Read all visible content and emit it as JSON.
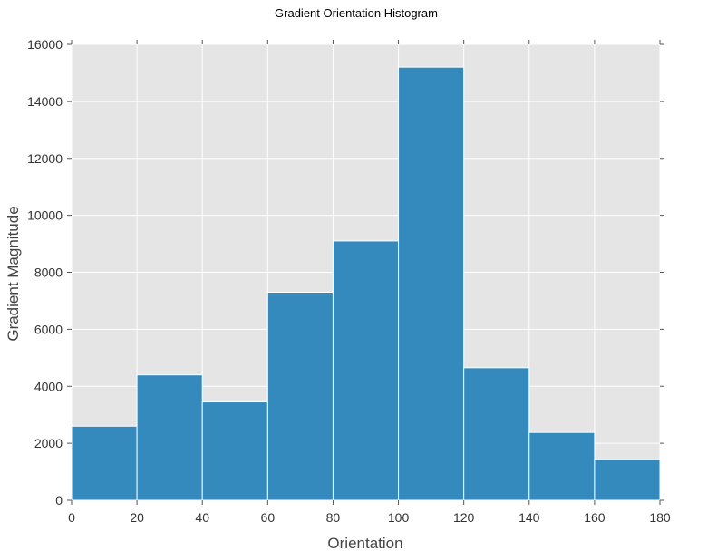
{
  "chart_data": {
    "type": "bar",
    "title": "Gradient Orientation Histogram",
    "xlabel": "Orientation",
    "ylabel": "Gradient Magnitude",
    "bin_edges": [
      0,
      20,
      40,
      60,
      80,
      100,
      120,
      140,
      160,
      180
    ],
    "values": [
      2600,
      4400,
      3450,
      7300,
      9100,
      15200,
      4650,
      2380,
      1420
    ],
    "xlim": [
      0,
      180
    ],
    "ylim": [
      0,
      16000
    ],
    "xticks": [
      0,
      20,
      40,
      60,
      80,
      100,
      120,
      140,
      160,
      180
    ],
    "yticks": [
      0,
      2000,
      4000,
      6000,
      8000,
      10000,
      12000,
      14000,
      16000
    ],
    "xtick_labels": [
      "0",
      "20",
      "40",
      "60",
      "80",
      "100",
      "120",
      "140",
      "160",
      "180"
    ],
    "ytick_labels": [
      "0",
      "2000",
      "4000",
      "6000",
      "8000",
      "10000",
      "12000",
      "14000",
      "16000"
    ],
    "grid": true,
    "colors": {
      "bar": "#348abd",
      "bar_edge": "#ffffff",
      "background": "#e5e5e5",
      "grid": "#ffffff",
      "tick": "#555555"
    }
  }
}
